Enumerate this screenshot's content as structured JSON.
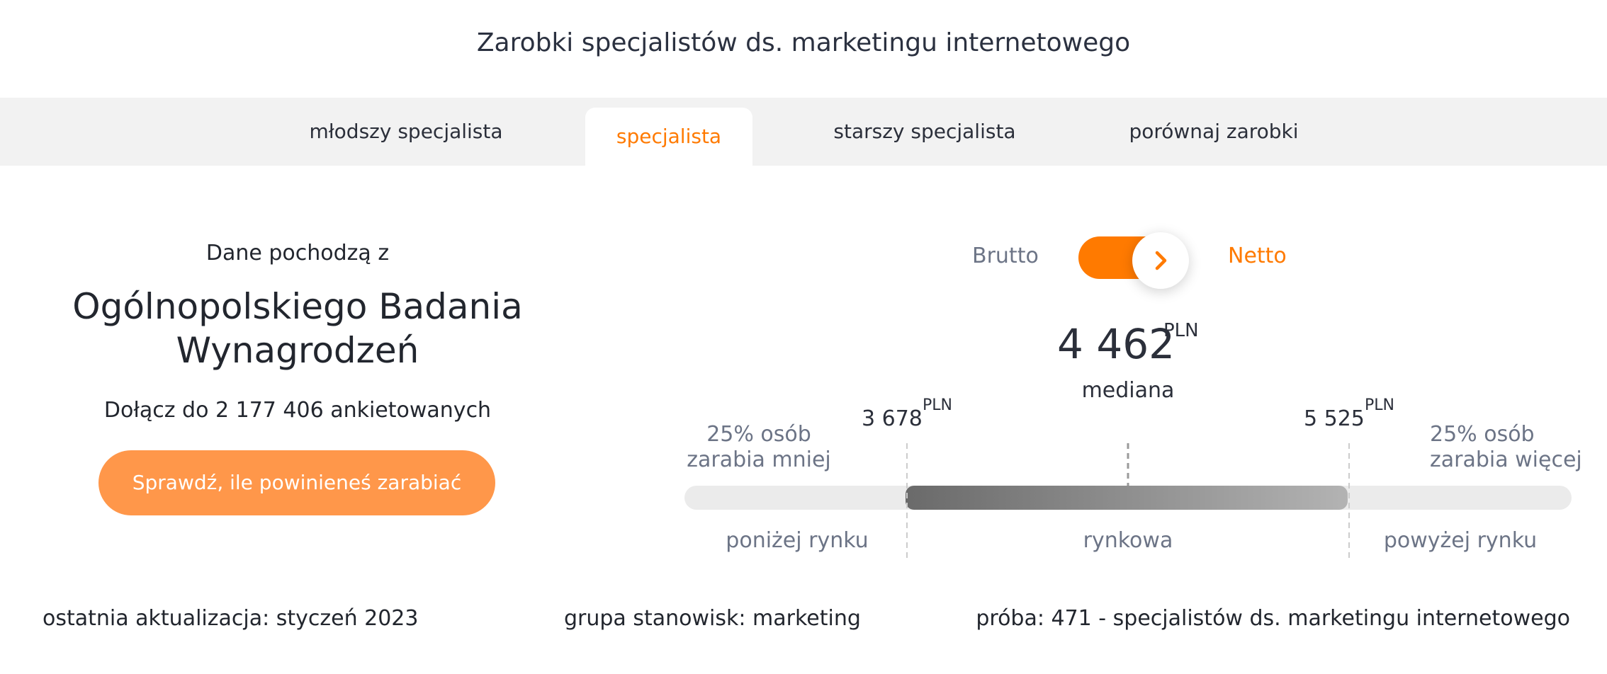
{
  "page": {
    "title": "Zarobki specjalistów ds. marketingu internetowego"
  },
  "tabs": [
    {
      "label": "młodszy specjalista",
      "active": false
    },
    {
      "label": "specjalista",
      "active": true
    },
    {
      "label": "starszy specjalista",
      "active": false
    },
    {
      "label": "porównaj zarobki",
      "active": false
    }
  ],
  "source": {
    "intro": "Dane pochodzą z",
    "name": "Ogólnopolskiego Badania Wynagrodzeń",
    "join_text": "Dołącz do 2 177 406 ankietowanych",
    "cta_label": "Sprawdź, ile powinieneś zarabiać"
  },
  "toggle": {
    "left_label": "Brutto",
    "right_label": "Netto",
    "selected": "Netto",
    "icon": "chevron-right-icon"
  },
  "salary": {
    "median": "4 462",
    "median_unit": "PLN",
    "median_label": "mediana",
    "q1": "3 678",
    "q1_unit": "PLN",
    "q3": "5 525",
    "q3_unit": "PLN",
    "left_note": "25% osób zarabia mniej",
    "right_note": "25% osób zarabia więcej",
    "ranges": [
      "poniżej rynku",
      "rynkowa",
      "powyżej rynku"
    ]
  },
  "footer": {
    "updated": "ostatnia aktualizacja: styczeń 2023",
    "group": "grupa stanowisk: marketing",
    "sample": "próba: 471 - specjalistów ds. marketingu internetowego"
  },
  "colors": {
    "accent": "#ff7a00",
    "cta": "#ff974a",
    "tabs_bg": "#f2f2f2",
    "muted": "#6c7486"
  }
}
